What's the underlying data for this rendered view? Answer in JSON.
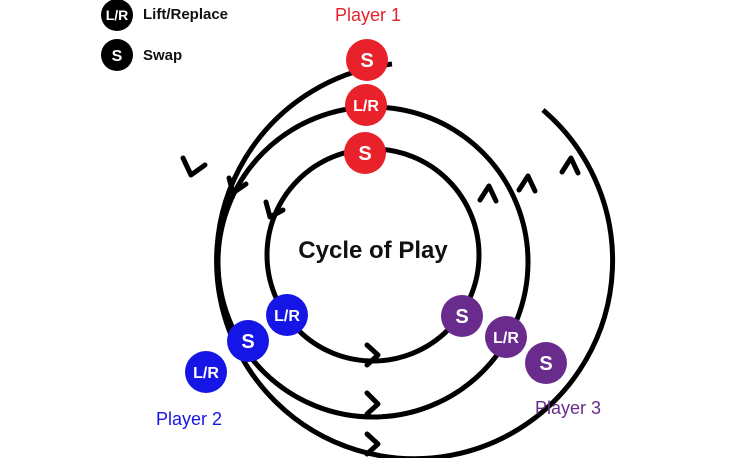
{
  "title": "Cycle of Play",
  "legend": {
    "lift_replace": {
      "symbol": "L/R",
      "label": "Lift/Replace"
    },
    "swap": {
      "symbol": "S",
      "label": "Swap"
    }
  },
  "players": [
    {
      "label": "Player 1",
      "color": "#e8212b",
      "tokens": [
        "S",
        "L/R",
        "S"
      ]
    },
    {
      "label": "Player 2",
      "color": "#1515e6",
      "tokens": [
        "L/R",
        "S",
        "L/R"
      ]
    },
    {
      "label": "Player 3",
      "color": "#6a2c8c",
      "tokens": [
        "S",
        "L/R",
        "S"
      ]
    }
  ],
  "colors": {
    "ring": "#000000",
    "legend_token": "#000000",
    "text": "#111111"
  }
}
